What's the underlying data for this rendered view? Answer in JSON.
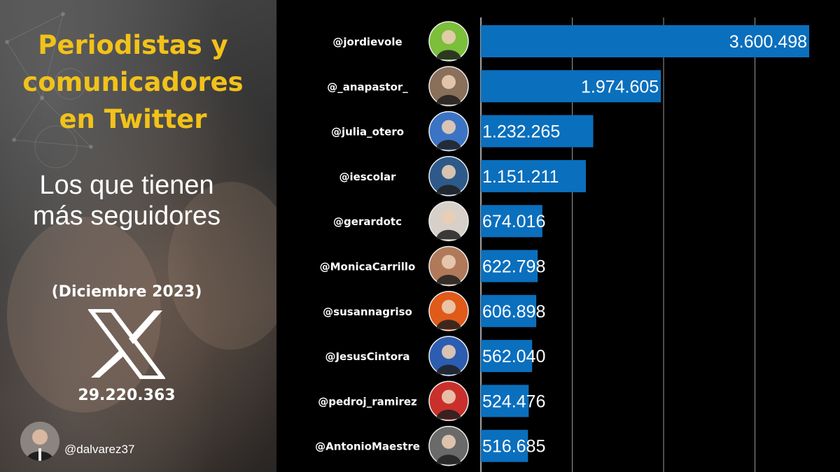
{
  "title": {
    "lines": [
      "Periodistas y",
      "comunicadores",
      "en Twitter"
    ],
    "color": "#f2c21a"
  },
  "subtitle": {
    "lines": [
      "Los que tienen",
      "más seguidores"
    ]
  },
  "date_label": "(Diciembre 2023)",
  "platform_icon": "x-logo-icon",
  "total_followers": "29.220.363",
  "author": {
    "handle": "@dalvarez37",
    "avatar_icon": "author-avatar"
  },
  "chart_data": {
    "type": "bar",
    "orientation": "horizontal",
    "bar_color": "#0a6fbd",
    "grid": true,
    "xlim": [
      0,
      3600498
    ],
    "categories": [
      "@jordievole",
      "@_anapastor_",
      "@julia_otero",
      "@iescolar",
      "@gerardotc",
      "@MonicaCarrillo",
      "@susannagriso",
      "@JesusCintora",
      "@pedroj_ramirez",
      "@AntonioMaestre"
    ],
    "values": [
      3600498,
      1974605,
      1232265,
      1151211,
      674016,
      622798,
      606898,
      562040,
      524476,
      516685
    ],
    "labels": [
      "3.600.498",
      "1.974.605",
      "1.232.265",
      "1.151.211",
      "674.016",
      "622.798",
      "606.898",
      "562.040",
      "524.476",
      "516.685"
    ],
    "avatar_colors": [
      "#7bbf3a",
      "#8a6f5a",
      "#3b74c4",
      "#2d5a8a",
      "#d7d0c8",
      "#b07a5a",
      "#e05a1a",
      "#2c5db0",
      "#c9302c",
      "#6a6a6a"
    ]
  }
}
